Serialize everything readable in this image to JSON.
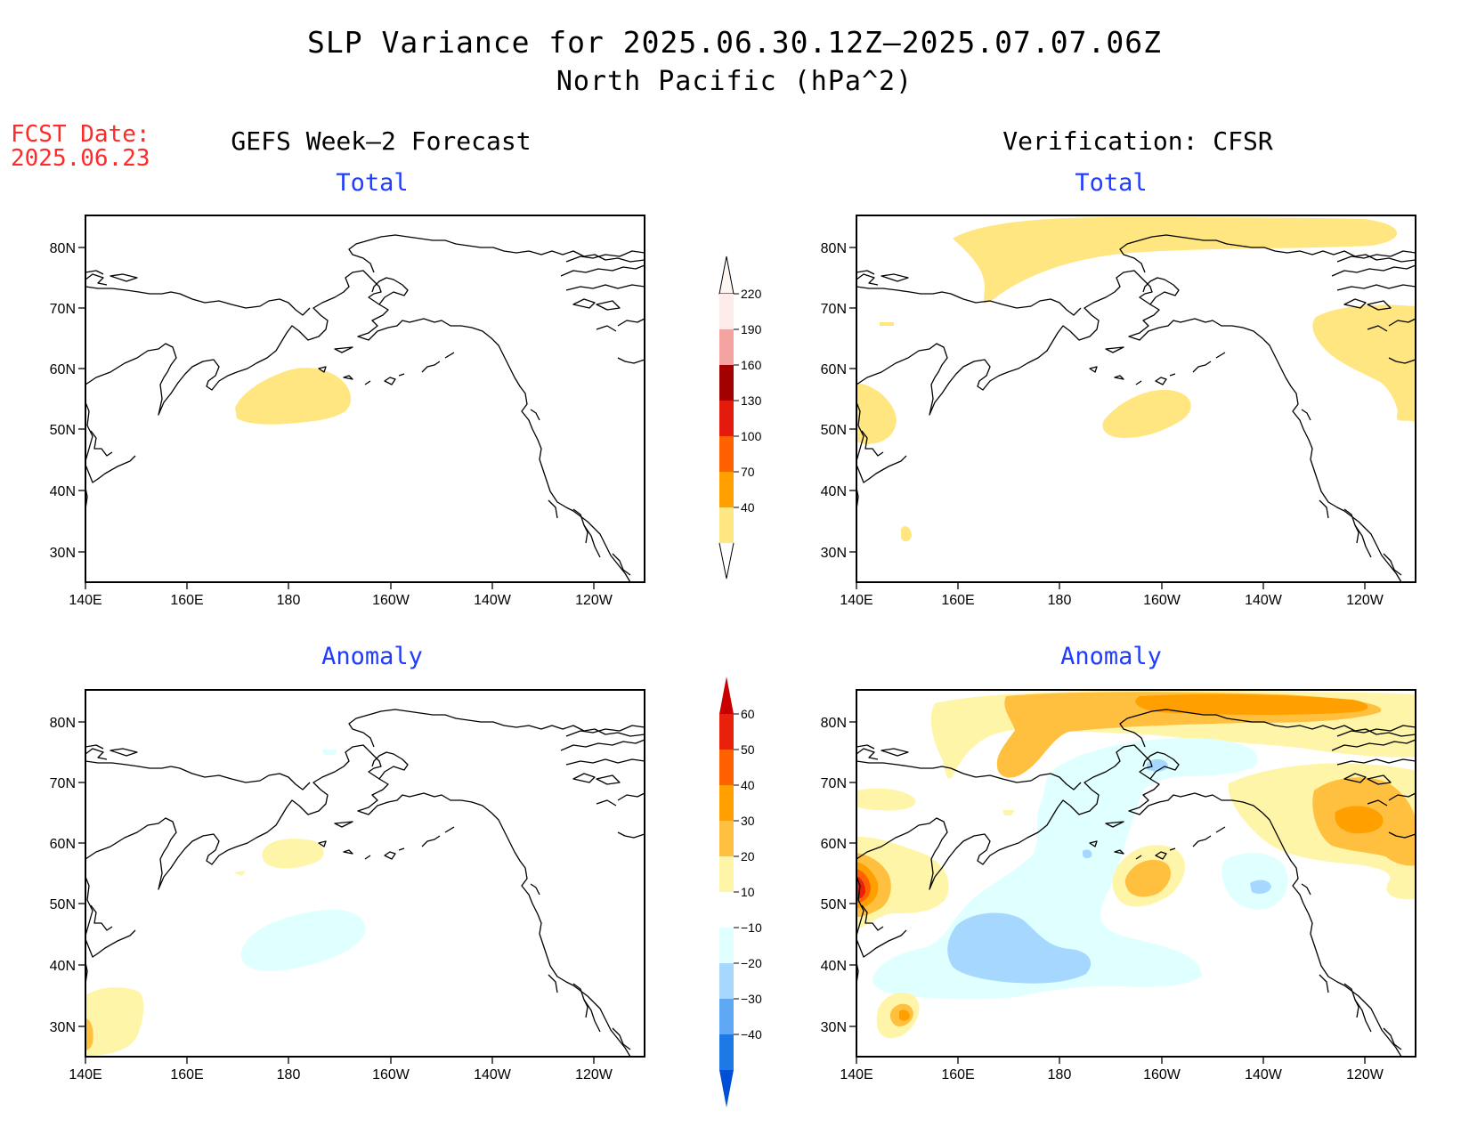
{
  "header": {
    "title_line1": "SLP Variance for 2025.06.30.12Z–2025.07.07.06Z",
    "title_line2": "North Pacific (hPa^2)",
    "fcst_label": "FCST Date:",
    "fcst_date": "2025.06.23"
  },
  "columns": {
    "left_title": "GEFS Week–2 Forecast",
    "right_title": "Verification: CFSR"
  },
  "panels": {
    "top_left": "Total",
    "top_right": "Total",
    "bottom_left": "Anomaly",
    "bottom_right": "Anomaly"
  },
  "axes": {
    "lat_labels": [
      "80N",
      "70N",
      "60N",
      "50N",
      "40N",
      "30N"
    ],
    "lon_labels": [
      "140E",
      "160E",
      "180",
      "160W",
      "140W",
      "120W"
    ]
  },
  "colorbars": {
    "total": {
      "levels": [
        "220",
        "190",
        "160",
        "130",
        "100",
        "70",
        "40"
      ],
      "colors": [
        "#fdecea",
        "#f4a2a2",
        "#a30000",
        "#e31a0c",
        "#ff6000",
        "#ffa000",
        "#ffe680"
      ]
    },
    "anomaly": {
      "levels": [
        "60",
        "50",
        "40",
        "30",
        "20",
        "10",
        "−10",
        "−20",
        "−30",
        "−40"
      ],
      "colors": [
        "#c80000",
        "#e8200c",
        "#ff6000",
        "#ffa000",
        "#ffc040",
        "#fff5a8",
        "#ffffff",
        "#e0ffff",
        "#a6d8ff",
        "#5fa8f5",
        "#1e78e6",
        "#0050d6"
      ]
    }
  },
  "palette": {
    "pos10": "#fff5a8",
    "pos20": "#ffc040",
    "pos30": "#ffa000",
    "pos40": "#ff6000",
    "pos50": "#e8200c",
    "pos60": "#c80000",
    "neg10": "#e0ffff",
    "neg20": "#a6d8ff",
    "tot40": "#ffe680"
  }
}
